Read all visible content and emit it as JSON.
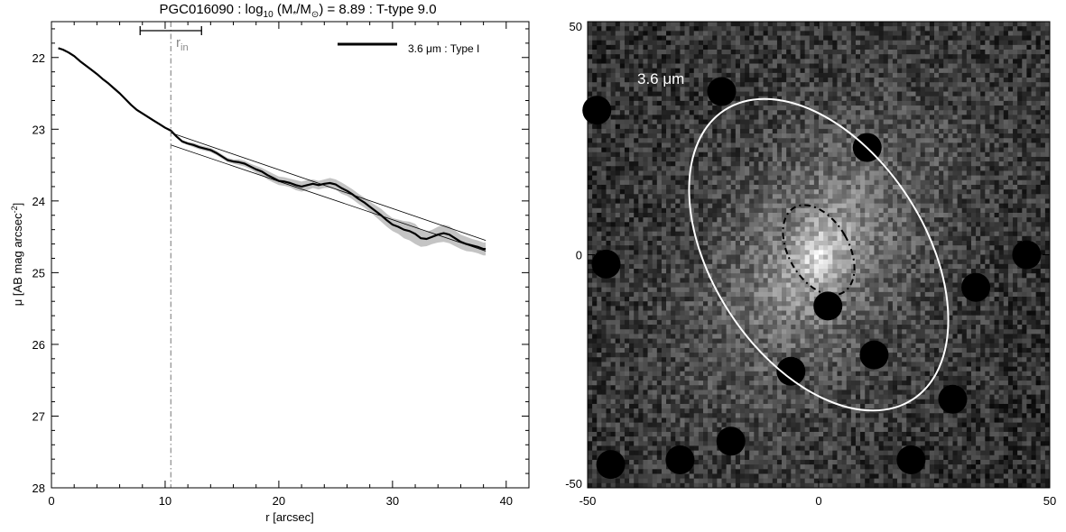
{
  "chart_data": [
    {
      "type": "line",
      "title": {
        "pre": "PGC016090 : log",
        "sub1": "10",
        "mid": " (M",
        "sub2": "*",
        "mid2": "/M",
        "sub3": "⊙",
        "post": ") = 8.89 : T-type 9.0"
      },
      "xlabel": "r [arcsec]",
      "ylabel": {
        "main": "μ [AB mag arcsec",
        "sup": "-2",
        "close": "]"
      },
      "xlim": [
        0,
        42
      ],
      "ylim": [
        28,
        21.5
      ],
      "y_inverted": true,
      "xticks": [
        0,
        10,
        20,
        30,
        40
      ],
      "yticks": [
        22,
        23,
        24,
        25,
        26,
        27,
        28
      ],
      "legend": {
        "label": "3.6 μm : Type I",
        "placement": "top-right"
      },
      "r_in": {
        "label": "r",
        "sub": "in",
        "value": 10.5,
        "range": [
          7.8,
          13.2
        ]
      },
      "series": [
        {
          "name": "3.6 μm : Type I",
          "x": [
            0.6,
            1.0,
            1.5,
            2.0,
            2.5,
            3.0,
            3.5,
            4.0,
            4.5,
            5.0,
            5.5,
            6.0,
            6.5,
            7.0,
            7.5,
            8.0,
            8.5,
            9.0,
            9.5,
            10.0,
            10.5,
            11.0,
            11.5,
            12.0,
            12.5,
            13.0,
            13.5,
            14.0,
            14.5,
            15.0,
            15.5,
            16.0,
            16.5,
            17.0,
            17.5,
            18.0,
            18.5,
            19.0,
            19.5,
            20.0,
            20.5,
            21.0,
            21.5,
            22.0,
            22.5,
            23.0,
            23.5,
            24.0,
            24.5,
            25.0,
            25.5,
            26.0,
            26.5,
            27.0,
            27.5,
            28.0,
            28.5,
            29.0,
            29.5,
            30.0,
            30.5,
            31.0,
            31.5,
            32.0,
            32.5,
            33.0,
            33.5,
            34.0,
            34.5,
            35.0,
            35.5,
            36.0,
            36.5,
            37.0,
            37.5,
            38.0,
            38.2
          ],
          "y": [
            21.87,
            21.89,
            21.93,
            21.98,
            22.05,
            22.11,
            22.17,
            22.23,
            22.3,
            22.36,
            22.43,
            22.5,
            22.58,
            22.66,
            22.73,
            22.78,
            22.83,
            22.88,
            22.93,
            22.98,
            23.02,
            23.1,
            23.17,
            23.2,
            23.22,
            23.25,
            23.27,
            23.29,
            23.33,
            23.38,
            23.43,
            23.45,
            23.46,
            23.48,
            23.52,
            23.56,
            23.59,
            23.64,
            23.68,
            23.72,
            23.73,
            23.75,
            23.78,
            23.8,
            23.78,
            23.76,
            23.78,
            23.76,
            23.75,
            23.77,
            23.82,
            23.86,
            23.91,
            23.97,
            24.02,
            24.08,
            24.14,
            24.2,
            24.27,
            24.33,
            24.36,
            24.4,
            24.42,
            24.46,
            24.52,
            24.53,
            24.5,
            24.47,
            24.45,
            24.47,
            24.52,
            24.57,
            24.6,
            24.62,
            24.64,
            24.67,
            24.67
          ],
          "uncertainty": [
            0.01,
            0.01,
            0.01,
            0.01,
            0.01,
            0.01,
            0.01,
            0.01,
            0.01,
            0.01,
            0.01,
            0.01,
            0.01,
            0.01,
            0.01,
            0.01,
            0.01,
            0.01,
            0.01,
            0.01,
            0.02,
            0.02,
            0.02,
            0.02,
            0.03,
            0.03,
            0.03,
            0.03,
            0.03,
            0.03,
            0.03,
            0.03,
            0.04,
            0.04,
            0.04,
            0.05,
            0.05,
            0.06,
            0.06,
            0.06,
            0.06,
            0.06,
            0.07,
            0.07,
            0.07,
            0.06,
            0.06,
            0.06,
            0.07,
            0.07,
            0.08,
            0.07,
            0.07,
            0.07,
            0.07,
            0.07,
            0.08,
            0.09,
            0.09,
            0.09,
            0.1,
            0.12,
            0.13,
            0.14,
            0.12,
            0.1,
            0.1,
            0.11,
            0.12,
            0.12,
            0.11,
            0.1,
            0.1,
            0.09,
            0.09,
            0.09,
            0.09
          ]
        }
      ],
      "fit_lines": [
        {
          "x": [
            10.5,
            38.2
          ],
          "y": [
            23.05,
            24.55
          ]
        },
        {
          "x": [
            10.5,
            38.2
          ],
          "y": [
            23.22,
            24.7
          ]
        }
      ]
    },
    {
      "type": "heatmap",
      "title": "",
      "label": "3.6 μm",
      "xlim": [
        -50,
        50
      ],
      "ylim": [
        -50,
        50
      ],
      "xticks": [
        -50,
        0,
        50
      ],
      "yticks": [
        50,
        0,
        -50
      ],
      "colormap": "grayscale",
      "outer_ellipse": {
        "center": [
          0,
          0
        ],
        "semi_major": 37,
        "semi_minor": 23,
        "position_angle_deg": 33,
        "color": "#ffffff",
        "style": "solid"
      },
      "inner_ellipse": {
        "center": [
          0,
          1
        ],
        "semi_major": 10.5,
        "semi_minor": 6.5,
        "position_angle_deg": 30,
        "color": "#000000",
        "style": "dash-dot"
      },
      "masked_sources": [
        {
          "x": -21,
          "y": 35
        },
        {
          "x": 10.5,
          "y": 23
        },
        {
          "x": 2,
          "y": -11
        },
        {
          "x": 12,
          "y": -21.5
        },
        {
          "x": -6,
          "y": -25
        },
        {
          "x": 29,
          "y": -31
        },
        {
          "x": 45,
          "y": 0
        },
        {
          "x": 34,
          "y": -7
        },
        {
          "x": -46,
          "y": -2
        },
        {
          "x": -48,
          "y": 31
        },
        {
          "x": -45,
          "y": -45
        },
        {
          "x": -30,
          "y": -44
        },
        {
          "x": 20,
          "y": -44
        },
        {
          "x": -19,
          "y": -40
        }
      ]
    }
  ]
}
